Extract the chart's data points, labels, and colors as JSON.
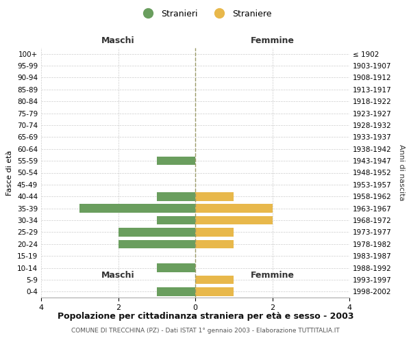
{
  "age_groups": [
    "100+",
    "95-99",
    "90-94",
    "85-89",
    "80-84",
    "75-79",
    "70-74",
    "65-69",
    "60-64",
    "55-59",
    "50-54",
    "45-49",
    "40-44",
    "35-39",
    "30-34",
    "25-29",
    "20-24",
    "15-19",
    "10-14",
    "5-9",
    "0-4"
  ],
  "birth_years": [
    "≤ 1902",
    "1903-1907",
    "1908-1912",
    "1913-1917",
    "1918-1922",
    "1923-1927",
    "1928-1932",
    "1933-1937",
    "1938-1942",
    "1943-1947",
    "1948-1952",
    "1953-1957",
    "1958-1962",
    "1963-1967",
    "1968-1972",
    "1973-1977",
    "1978-1982",
    "1983-1987",
    "1988-1992",
    "1993-1997",
    "1998-2002"
  ],
  "maschi": [
    0,
    0,
    0,
    0,
    0,
    0,
    0,
    0,
    0,
    1,
    0,
    0,
    1,
    3,
    1,
    2,
    2,
    0,
    1,
    0,
    1
  ],
  "femmine": [
    0,
    0,
    0,
    0,
    0,
    0,
    0,
    0,
    0,
    0,
    0,
    0,
    1,
    2,
    2,
    1,
    1,
    0,
    0,
    1,
    1
  ],
  "maschi_color": "#6a9e5e",
  "femmine_color": "#e8b84b",
  "background_color": "#ffffff",
  "grid_color": "#cccccc",
  "center_line_color": "#999966",
  "title": "Popolazione per cittadinanza straniera per età e sesso - 2003",
  "subtitle": "COMUNE DI TRECCHINA (PZ) - Dati ISTAT 1° gennaio 2003 - Elaborazione TUTTITALIA.IT",
  "left_label": "Maschi",
  "right_label": "Femmine",
  "ylabel_left": "Fasce di età",
  "ylabel_right": "Anni di nascita",
  "legend_stranieri": "Stranieri",
  "legend_straniere": "Straniere",
  "xlim": 4,
  "xlabel_ticks": [
    -4,
    -2,
    0,
    2,
    4
  ],
  "xlabel_labels": [
    "4",
    "2",
    "0",
    "2",
    "4"
  ]
}
